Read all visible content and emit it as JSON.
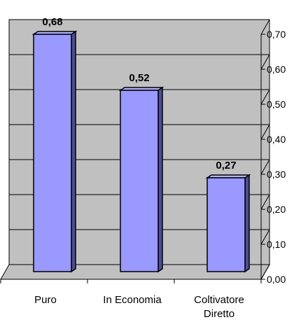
{
  "chart_data": {
    "type": "bar",
    "categories": [
      [
        "Puro"
      ],
      [
        "In Economia"
      ],
      [
        "Coltivatore",
        "Diretto"
      ]
    ],
    "values": [
      0.68,
      0.52,
      0.27
    ],
    "value_labels": [
      "0,68",
      "0,52",
      "0,27"
    ],
    "ylim": [
      0,
      0.7
    ],
    "yticks": [
      0,
      0.1,
      0.2,
      0.3,
      0.4,
      0.5,
      0.6,
      0.7
    ],
    "ytick_labels": [
      "0,00",
      "0,10",
      "0,20",
      "0,30",
      "0,40",
      "0,50",
      "0,60",
      "0,70"
    ],
    "y_axis_side": "right",
    "grid": true,
    "style": "3d",
    "colors": {
      "bar_front": "#9999ff",
      "bar_side": "#4d4d99",
      "bar_top": "#b3b3ff",
      "wall": "#c0c0c0",
      "gridline": "#000000"
    }
  }
}
